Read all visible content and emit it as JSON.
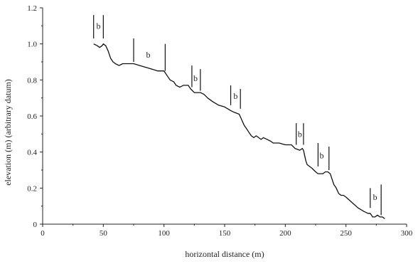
{
  "chart_data": {
    "type": "line",
    "title": "",
    "xlabel": "horizontal distance (m)",
    "ylabel": "elevation (m) (arbitrary datum)",
    "xlim": [
      0,
      300
    ],
    "ylim": [
      0,
      1.2
    ],
    "xticks": [
      0,
      50,
      100,
      150,
      200,
      250,
      300
    ],
    "yticks": [
      0,
      0.2,
      0.4,
      0.6,
      0.8,
      1.0,
      1.2
    ],
    "xtick_labels": [
      "0",
      "50",
      "100",
      "150",
      "200",
      "250",
      "300"
    ],
    "ytick_labels": [
      "0",
      "0.2",
      "0.4",
      "0.6",
      "0.8",
      "1.0",
      "1.2"
    ],
    "grid": false,
    "series": [
      {
        "x": [
          42,
          45,
          47,
          49,
          50,
          52,
          54,
          56,
          58,
          60,
          63,
          66,
          70,
          75,
          80,
          85,
          90,
          95,
          100,
          101,
          103,
          105,
          108,
          110,
          113,
          116,
          118,
          120,
          122,
          125,
          128,
          130,
          133,
          136,
          140,
          145,
          150,
          155,
          158,
          162,
          164,
          166,
          168,
          170,
          172,
          174,
          176,
          178,
          180,
          182,
          185,
          188,
          190,
          195,
          200,
          205,
          208,
          212,
          214,
          215,
          216,
          217,
          218,
          220,
          222,
          225,
          227,
          229,
          231,
          233,
          235,
          237,
          238,
          240,
          242,
          244,
          246,
          248,
          250,
          255,
          260,
          265,
          268,
          270,
          272,
          274,
          276,
          278,
          280,
          282
        ],
        "y": [
          1.0,
          0.99,
          0.98,
          0.99,
          1.0,
          0.99,
          0.96,
          0.92,
          0.9,
          0.89,
          0.88,
          0.89,
          0.89,
          0.89,
          0.88,
          0.87,
          0.86,
          0.85,
          0.85,
          0.84,
          0.82,
          0.8,
          0.79,
          0.77,
          0.76,
          0.77,
          0.77,
          0.77,
          0.75,
          0.73,
          0.73,
          0.73,
          0.72,
          0.7,
          0.68,
          0.66,
          0.65,
          0.63,
          0.62,
          0.61,
          0.58,
          0.55,
          0.53,
          0.51,
          0.49,
          0.48,
          0.49,
          0.48,
          0.47,
          0.48,
          0.47,
          0.46,
          0.45,
          0.45,
          0.44,
          0.44,
          0.42,
          0.41,
          0.42,
          0.41,
          0.38,
          0.35,
          0.33,
          0.32,
          0.31,
          0.29,
          0.28,
          0.28,
          0.28,
          0.29,
          0.29,
          0.28,
          0.26,
          0.22,
          0.2,
          0.17,
          0.16,
          0.16,
          0.15,
          0.12,
          0.09,
          0.07,
          0.06,
          0.06,
          0.04,
          0.04,
          0.05,
          0.04,
          0.04,
          0.03
        ]
      }
    ],
    "annotations": [
      {
        "text": "b",
        "x": 46,
        "y": 1.1,
        "brackets": [
          [
            42,
            1.03,
            1.16
          ],
          [
            50,
            1.03,
            1.16
          ]
        ]
      },
      {
        "text": "b",
        "x": 87,
        "y": 0.94,
        "brackets": [
          [
            75,
            0.9,
            1.03
          ],
          [
            101,
            0.85,
            1.0
          ]
        ]
      },
      {
        "text": "b",
        "x": 126,
        "y": 0.81,
        "brackets": [
          [
            123,
            0.76,
            0.88
          ],
          [
            130,
            0.74,
            0.86
          ]
        ]
      },
      {
        "text": "b",
        "x": 159,
        "y": 0.71,
        "brackets": [
          [
            155,
            0.66,
            0.77
          ],
          [
            163,
            0.64,
            0.75
          ]
        ]
      },
      {
        "text": "b",
        "x": 212,
        "y": 0.5,
        "brackets": [
          [
            209,
            0.44,
            0.56
          ],
          [
            215,
            0.44,
            0.56
          ]
        ]
      },
      {
        "text": "b",
        "x": 230,
        "y": 0.38,
        "brackets": [
          [
            227,
            0.32,
            0.45
          ],
          [
            236,
            0.3,
            0.43
          ]
        ]
      },
      {
        "text": "b",
        "x": 274,
        "y": 0.15,
        "brackets": [
          [
            270,
            0.09,
            0.2
          ],
          [
            279,
            0.05,
            0.22
          ]
        ]
      }
    ]
  }
}
